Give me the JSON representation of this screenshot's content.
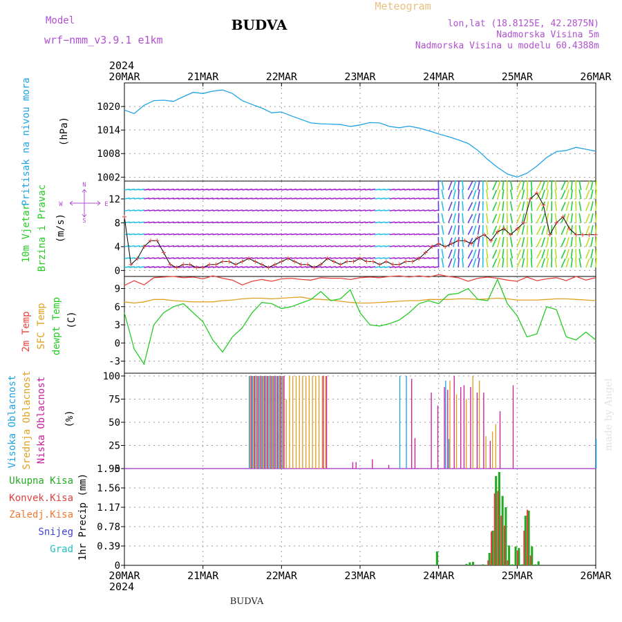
{
  "header": {
    "model_label": "Model",
    "model_name": "wrf−nmm_v3.9.1  e1km",
    "title": "BUDVA",
    "meteogram": "Meteogram",
    "lonlat": "lon,lat (18.8125E, 42.2875N)",
    "elev": "Nadmorska Visina 5m",
    "elev_model": "Nadmorska Visina u modelu 60.4388m",
    "year_top": "2024",
    "year_bottom": "2024",
    "footer": "BUDVA",
    "watermark": "made by Angel"
  },
  "colors": {
    "pressure": "#1fa3e6",
    "temp2m": "#e8413c",
    "sfc": "#e0a020",
    "dew": "#22cc22",
    "high": "#1fa3e6",
    "mid": "#e0a020",
    "low": "#cc1f99",
    "rain": "#22aa22",
    "conv": "#e04040",
    "frz": "#f07830",
    "snow": "#4040e0",
    "hail": "#20c0c0",
    "purple": "#b050d0"
  },
  "chart_data": [
    {
      "type": "line",
      "name": "pressure",
      "ylabel_a": "Pritisak na nivou mora",
      "ylabel_b": "(hPa)",
      "ylim": [
        1001,
        1026
      ],
      "yticks": [
        1002,
        1008,
        1014,
        1020
      ],
      "x": [
        0,
        3,
        6,
        9,
        12,
        15,
        18,
        21,
        24,
        27,
        30,
        33,
        36,
        39,
        42,
        45,
        48,
        51,
        54,
        57,
        60,
        63,
        66,
        69,
        72,
        75,
        78,
        81,
        84,
        87,
        90,
        93,
        96,
        99,
        102,
        105,
        108,
        111,
        114,
        117,
        120,
        123,
        126,
        129,
        132,
        135,
        138,
        141,
        144
      ],
      "values": [
        1019.1,
        1018.2,
        1020.3,
        1021.5,
        1021.6,
        1021.3,
        1022.5,
        1023.6,
        1023.3,
        1023.9,
        1024.2,
        1023.3,
        1021.5,
        1020.5,
        1019.6,
        1018.4,
        1018.6,
        1017.6,
        1016.7,
        1015.8,
        1015.6,
        1015.5,
        1015.4,
        1014.9,
        1015.3,
        1015.9,
        1015.8,
        1014.9,
        1014.6,
        1015.0,
        1014.5,
        1013.8,
        1013.0,
        1012.3,
        1011.5,
        1010.6,
        1008.8,
        1006.5,
        1004.5,
        1002.8,
        1002.0,
        1003.0,
        1004.8,
        1007.0,
        1008.5,
        1008.8,
        1009.6,
        1009.1,
        1008.6
      ]
    },
    {
      "type": "line",
      "name": "wind",
      "ylabel_a": "10m Vjetar",
      "ylabel_b": "Brzina i Pravac",
      "ylabel_c": "(m/s)",
      "compass": {
        "n": "N",
        "s": "S",
        "e": "E",
        "w": "W"
      },
      "ylim": [
        -1,
        15
      ],
      "yticks": [
        0,
        4,
        8,
        12
      ],
      "x": [
        0,
        2,
        4,
        6,
        8,
        10,
        12,
        14,
        16,
        18,
        20,
        22,
        24,
        26,
        28,
        30,
        32,
        34,
        36,
        38,
        40,
        42,
        44,
        46,
        48,
        50,
        52,
        54,
        56,
        58,
        60,
        62,
        64,
        66,
        68,
        70,
        72,
        74,
        76,
        78,
        80,
        82,
        84,
        86,
        88,
        90,
        92,
        94,
        96,
        98,
        100,
        102,
        104,
        106,
        108,
        110,
        112,
        114,
        116,
        118,
        120,
        122,
        124,
        126,
        128,
        130,
        132,
        134,
        136,
        138,
        140,
        142,
        144
      ],
      "values": [
        9,
        1,
        2,
        4,
        5,
        5,
        3,
        1,
        0.5,
        1,
        1,
        0.5,
        0.5,
        1,
        1,
        1.5,
        1.5,
        1,
        1.5,
        2,
        1.5,
        1,
        0.5,
        1,
        1.5,
        2,
        1.5,
        1,
        1,
        0.5,
        1,
        2,
        1.5,
        1,
        1.5,
        1.5,
        2,
        1.5,
        1.5,
        1,
        1.5,
        1,
        1,
        1.5,
        1.5,
        2,
        3,
        4,
        4.5,
        4,
        4.5,
        5,
        5,
        4.5,
        5.5,
        6,
        5,
        6.5,
        7,
        6,
        7,
        8,
        12,
        13,
        11,
        6,
        8,
        9,
        7,
        6,
        6,
        6,
        6
      ]
    },
    {
      "type": "line",
      "name": "temperature",
      "ylabel_a": "2m Temp",
      "ylabel_b": "SFC Temp",
      "ylabel_c": "dewpt Temp",
      "ylabel_d": "(C)",
      "ylim": [
        -5,
        11
      ],
      "yticks": [
        -3,
        0,
        3,
        6,
        9
      ],
      "x": [
        0,
        3,
        6,
        9,
        12,
        15,
        18,
        21,
        24,
        27,
        30,
        33,
        36,
        39,
        42,
        45,
        48,
        51,
        54,
        57,
        60,
        63,
        66,
        69,
        72,
        75,
        78,
        81,
        84,
        87,
        90,
        93,
        96,
        99,
        102,
        105,
        108,
        111,
        114,
        117,
        120,
        123,
        126,
        129,
        132,
        135,
        138,
        141,
        144
      ],
      "series": [
        {
          "name": "2m Temp",
          "values": [
            9.5,
            10.3,
            9.6,
            10.8,
            10.9,
            11.0,
            10.8,
            10.9,
            10.6,
            11.1,
            10.7,
            10.4,
            9.6,
            10.2,
            10.5,
            10.2,
            10.6,
            10.7,
            10.5,
            10.4,
            10.8,
            10.7,
            10.7,
            10.5,
            10.8,
            10.9,
            10.8,
            11.0,
            11.1,
            10.9,
            11.1,
            10.9,
            11.3,
            11.0,
            10.8,
            10.2,
            10.7,
            10.9,
            10.7,
            10.4,
            10.2,
            10.9,
            10.3,
            10.6,
            10.8,
            10.3,
            11.0,
            10.4,
            10.8
          ]
        },
        {
          "name": "SFC Temp",
          "values": [
            6.8,
            6.6,
            6.8,
            7.2,
            7.2,
            7.0,
            6.9,
            6.8,
            6.8,
            6.8,
            7.0,
            7.1,
            7.3,
            7.4,
            7.4,
            7.3,
            7.4,
            7.5,
            7.6,
            7.3,
            7.2,
            7.1,
            6.9,
            6.7,
            6.6,
            6.6,
            6.7,
            6.8,
            6.9,
            7.0,
            7.0,
            7.2,
            7.2,
            7.2,
            7.3,
            7.3,
            7.2,
            7.3,
            7.4,
            7.3,
            7.1,
            7.1,
            7.1,
            7.2,
            7.3,
            7.3,
            7.2,
            7.1,
            7.0
          ]
        },
        {
          "name": "dewpt Temp",
          "values": [
            5.0,
            -1.0,
            -3.5,
            3.0,
            5.0,
            6.0,
            6.5,
            5.0,
            3.5,
            0.5,
            -1.5,
            1.0,
            2.5,
            5.0,
            6.7,
            6.5,
            5.7,
            6.0,
            6.6,
            7.2,
            8.5,
            7.0,
            7.3,
            8.8,
            5.0,
            3.0,
            2.8,
            3.2,
            3.8,
            5.0,
            6.5,
            7.0,
            6.5,
            8.0,
            8.2,
            9.0,
            7.2,
            7.0,
            10.5,
            6.5,
            4.5,
            1.0,
            1.5,
            6.0,
            5.5,
            1.0,
            0.5,
            1.8,
            0.5
          ]
        }
      ]
    },
    {
      "type": "bar",
      "name": "clouds",
      "ylabel_a": "Visoka Oblacnost",
      "ylabel_b": "Srednja Oblacnost",
      "ylabel_c": "Niska Oblacnost",
      "ylabel_d": "(%)",
      "ylim": [
        0,
        103
      ],
      "yticks": [
        0,
        25,
        50,
        75,
        100
      ],
      "high": [
        [
          38,
          100
        ],
        [
          39,
          100
        ],
        [
          40,
          100
        ],
        [
          41,
          100
        ],
        [
          42,
          100
        ],
        [
          43,
          100
        ],
        [
          44,
          100
        ],
        [
          45,
          100
        ],
        [
          46,
          100
        ],
        [
          47,
          100
        ],
        [
          48,
          100
        ],
        [
          84,
          100
        ],
        [
          86,
          100
        ],
        [
          98,
          95
        ],
        [
          99,
          32
        ],
        [
          144,
          32
        ]
      ],
      "mid": [
        [
          38,
          100
        ],
        [
          39,
          100
        ],
        [
          40,
          100
        ],
        [
          41,
          100
        ],
        [
          42,
          100
        ],
        [
          43,
          100
        ],
        [
          44,
          100
        ],
        [
          45,
          100
        ],
        [
          46,
          100
        ],
        [
          47,
          100
        ],
        [
          48,
          100
        ],
        [
          49,
          75
        ],
        [
          50,
          100
        ],
        [
          51,
          100
        ],
        [
          52,
          100
        ],
        [
          53,
          100
        ],
        [
          54,
          100
        ],
        [
          55,
          100
        ],
        [
          56,
          100
        ],
        [
          57,
          100
        ],
        [
          58,
          100
        ],
        [
          59,
          100
        ],
        [
          60,
          100
        ],
        [
          61,
          100
        ],
        [
          99,
          95
        ],
        [
          101,
          80
        ],
        [
          104,
          75
        ],
        [
          106,
          100
        ],
        [
          108,
          95
        ],
        [
          110,
          35
        ],
        [
          112,
          40
        ],
        [
          113,
          48
        ]
      ],
      "low": [
        [
          38,
          100
        ],
        [
          39,
          100
        ],
        [
          40,
          100
        ],
        [
          41,
          100
        ],
        [
          42,
          100
        ],
        [
          43,
          100
        ],
        [
          44,
          100
        ],
        [
          45,
          100
        ],
        [
          46,
          100
        ],
        [
          47,
          100
        ],
        [
          48,
          100
        ],
        [
          60,
          100
        ],
        [
          61,
          100
        ],
        [
          69,
          7
        ],
        [
          70,
          7
        ],
        [
          75,
          10
        ],
        [
          80,
          4
        ],
        [
          87,
          97
        ],
        [
          88,
          33
        ],
        [
          93,
          82
        ],
        [
          95,
          68
        ],
        [
          97,
          88
        ],
        [
          98,
          85
        ],
        [
          100,
          100
        ],
        [
          102,
          88
        ],
        [
          103,
          90
        ],
        [
          105,
          88
        ],
        [
          107,
          82
        ],
        [
          109,
          82
        ],
        [
          111,
          30
        ],
        [
          114,
          62
        ],
        [
          118,
          90
        ]
      ]
    },
    {
      "type": "bar",
      "name": "precip",
      "ylabel_a": "1hr Precip (mm)",
      "legend": [
        "Ukupna Kisa",
        "Konvek.Kisa",
        "Zaledj.Kisa",
        "Snijeg",
        "Grad"
      ],
      "ylim": [
        0,
        1.95
      ],
      "yticks": [
        0,
        0.39,
        0.78,
        1.17,
        1.56,
        1.95
      ],
      "ytick_labels": [
        "0",
        "0.39",
        "0.78",
        "1.17",
        "1.56",
        "1.95"
      ],
      "rain": [
        [
          95,
          0.28
        ],
        [
          104,
          0.03
        ],
        [
          105,
          0.06
        ],
        [
          106,
          0.07
        ],
        [
          109,
          0.02
        ],
        [
          111,
          0.25
        ],
        [
          112,
          0.7
        ],
        [
          113,
          1.8
        ],
        [
          114,
          1.88
        ],
        [
          115,
          1.4
        ],
        [
          116,
          1.17
        ],
        [
          117,
          0.4
        ],
        [
          118,
          0.02
        ],
        [
          119,
          0.38
        ],
        [
          120,
          0.35
        ],
        [
          121,
          0.02
        ],
        [
          122,
          1.0
        ],
        [
          123,
          1.1
        ],
        [
          124,
          0.38
        ],
        [
          125,
          0.02
        ],
        [
          126,
          0.08
        ]
      ],
      "conv": [
        [
          111,
          0.1
        ],
        [
          112,
          0.68
        ],
        [
          113,
          1.45
        ],
        [
          114,
          1.5
        ],
        [
          115,
          1.0
        ],
        [
          116,
          0.8
        ],
        [
          117,
          0.1
        ],
        [
          120,
          0.3
        ],
        [
          122,
          0.7
        ],
        [
          123,
          1.12
        ],
        [
          124,
          0.2
        ]
      ]
    }
  ],
  "xaxis": {
    "day_labels": [
      "20MAR",
      "21MAR",
      "22MAR",
      "23MAR",
      "24MAR",
      "25MAR",
      "26MAR"
    ],
    "hours_total": 144
  }
}
